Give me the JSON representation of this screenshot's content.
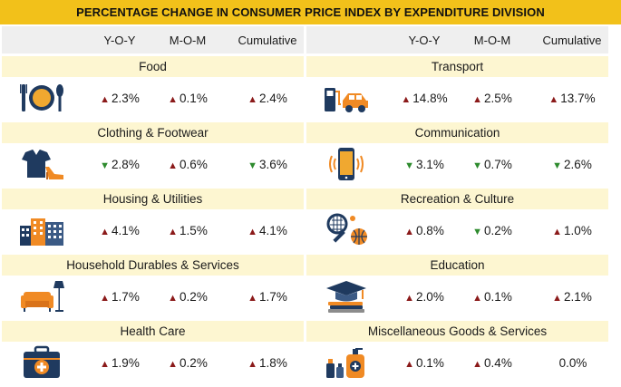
{
  "title": "PERCENTAGE CHANGE IN CONSUMER PRICE INDEX BY EXPENDITURE DIVISION",
  "headers": [
    "Y-O-Y",
    "M-O-M",
    "Cumulative"
  ],
  "left": [
    {
      "name": "Food",
      "icon": "plate-fork-spoon-icon",
      "values": [
        {
          "dir": "up",
          "text": "2.3%"
        },
        {
          "dir": "up",
          "text": "0.1%"
        },
        {
          "dir": "up",
          "text": "2.4%"
        }
      ]
    },
    {
      "name": "Clothing & Footwear",
      "icon": "shirt-shoe-icon",
      "values": [
        {
          "dir": "down",
          "text": "2.8%"
        },
        {
          "dir": "up",
          "text": "0.6%"
        },
        {
          "dir": "down",
          "text": "3.6%"
        }
      ]
    },
    {
      "name": "Housing & Utilities",
      "icon": "buildings-icon",
      "values": [
        {
          "dir": "up",
          "text": "4.1%"
        },
        {
          "dir": "up",
          "text": "1.5%"
        },
        {
          "dir": "up",
          "text": "4.1%"
        }
      ]
    },
    {
      "name": "Household Durables & Services",
      "icon": "sofa-lamp-icon",
      "values": [
        {
          "dir": "up",
          "text": "1.7%"
        },
        {
          "dir": "up",
          "text": "0.2%"
        },
        {
          "dir": "up",
          "text": "1.7%"
        }
      ]
    },
    {
      "name": "Health Care",
      "icon": "first-aid-kit-icon",
      "values": [
        {
          "dir": "up",
          "text": "1.9%"
        },
        {
          "dir": "up",
          "text": "0.2%"
        },
        {
          "dir": "up",
          "text": "1.8%"
        }
      ]
    }
  ],
  "right": [
    {
      "name": "Transport",
      "icon": "fuel-pump-car-icon",
      "values": [
        {
          "dir": "up",
          "text": "14.8%"
        },
        {
          "dir": "up",
          "text": "2.5%"
        },
        {
          "dir": "up",
          "text": "13.7%"
        }
      ]
    },
    {
      "name": "Communication",
      "icon": "smartphone-icon",
      "values": [
        {
          "dir": "down",
          "text": "3.1%"
        },
        {
          "dir": "down",
          "text": "0.7%"
        },
        {
          "dir": "down",
          "text": "2.6%"
        }
      ]
    },
    {
      "name": "Recreation & Culture",
      "icon": "racket-ball-icon",
      "values": [
        {
          "dir": "up",
          "text": "0.8%"
        },
        {
          "dir": "down",
          "text": "0.2%"
        },
        {
          "dir": "up",
          "text": "1.0%"
        }
      ]
    },
    {
      "name": "Education",
      "icon": "graduation-cap-books-icon",
      "values": [
        {
          "dir": "up",
          "text": "2.0%"
        },
        {
          "dir": "up",
          "text": "0.1%"
        },
        {
          "dir": "up",
          "text": "2.1%"
        }
      ]
    },
    {
      "name": "Miscellaneous Goods & Services",
      "icon": "personal-care-products-icon",
      "values": [
        {
          "dir": "up",
          "text": "0.1%"
        },
        {
          "dir": "up",
          "text": "0.4%"
        },
        {
          "dir": "none",
          "text": "0.0%"
        }
      ]
    }
  ],
  "colors": {
    "accent": "#f2c11a",
    "up": "#8b1a1a",
    "down": "#2e8b2e",
    "icon_navy": "#1f3a5f",
    "icon_orange": "#f08a24"
  }
}
